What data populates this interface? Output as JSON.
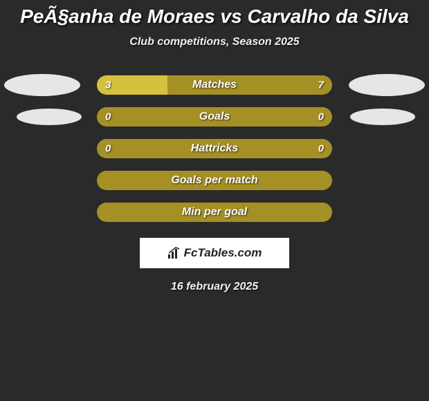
{
  "title": "PeÃ§anha de Moraes vs Carvalho da Silva",
  "subtitle": "Club competitions, Season 2025",
  "date": "16 february 2025",
  "logo_text": "FcTables.com",
  "colors": {
    "background": "#2a2a2a",
    "ellipse": "#e6e6e6",
    "bar_left": "#d6c13e",
    "bar_right": "#a59025",
    "bar_full": "#a59025",
    "bar_border_none": "transparent"
  },
  "rows": [
    {
      "label": "Matches",
      "left_val": "3",
      "right_val": "7",
      "left_pct": 30,
      "right_pct": 70,
      "show_left_ellipse": true,
      "show_right_ellipse": true,
      "split": true
    },
    {
      "label": "Goals",
      "left_val": "0",
      "right_val": "0",
      "left_pct": 0,
      "right_pct": 0,
      "show_left_ellipse": true,
      "show_right_ellipse": true,
      "split": false
    },
    {
      "label": "Hattricks",
      "left_val": "0",
      "right_val": "0",
      "left_pct": 0,
      "right_pct": 0,
      "show_left_ellipse": false,
      "show_right_ellipse": false,
      "split": false
    },
    {
      "label": "Goals per match",
      "left_val": "",
      "right_val": "",
      "left_pct": 0,
      "right_pct": 0,
      "show_left_ellipse": false,
      "show_right_ellipse": false,
      "split": false
    },
    {
      "label": "Min per goal",
      "left_val": "",
      "right_val": "",
      "left_pct": 0,
      "right_pct": 0,
      "show_left_ellipse": false,
      "show_right_ellipse": false,
      "split": false
    }
  ]
}
